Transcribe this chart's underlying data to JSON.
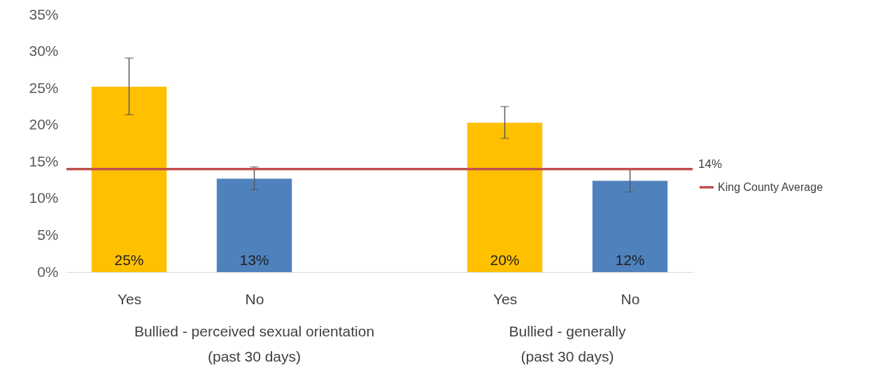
{
  "chart_data": {
    "type": "bar",
    "categories": [
      "Yes",
      "No",
      null,
      "Yes",
      "No"
    ],
    "values": [
      25.2,
      12.7,
      null,
      20.3,
      12.4
    ],
    "colors": [
      "#ffc000",
      "#4f81bd",
      null,
      "#ffc000",
      "#4f81bd"
    ],
    "errors": [
      [
        21.4,
        29.1
      ],
      [
        11.2,
        14.3
      ],
      null,
      [
        18.2,
        22.5
      ],
      [
        10.9,
        14.0
      ]
    ],
    "value_labels": [
      "25%",
      "13%",
      null,
      "20%",
      "12%"
    ],
    "ylim": [
      0,
      35
    ],
    "yticks": [
      {
        "value": 0,
        "label": "0%"
      },
      {
        "value": 5,
        "label": "5%"
      },
      {
        "value": 10,
        "label": "10%"
      },
      {
        "value": 15,
        "label": "15%"
      },
      {
        "value": 20,
        "label": "20%"
      },
      {
        "value": 25,
        "label": "25%"
      },
      {
        "value": 30,
        "label": "30%"
      },
      {
        "value": 35,
        "label": "35%"
      }
    ],
    "ref_lines": [
      {
        "axis": "y",
        "value": 14,
        "label": "King County Average",
        "color": "#c0504d"
      }
    ],
    "annotations": [
      "14%",
      "Bullied - perceived sexual orientation\n(past 30 days)",
      "Bullied - generally\n(past 30 days)"
    ],
    "legend": "right",
    "grid": false
  }
}
